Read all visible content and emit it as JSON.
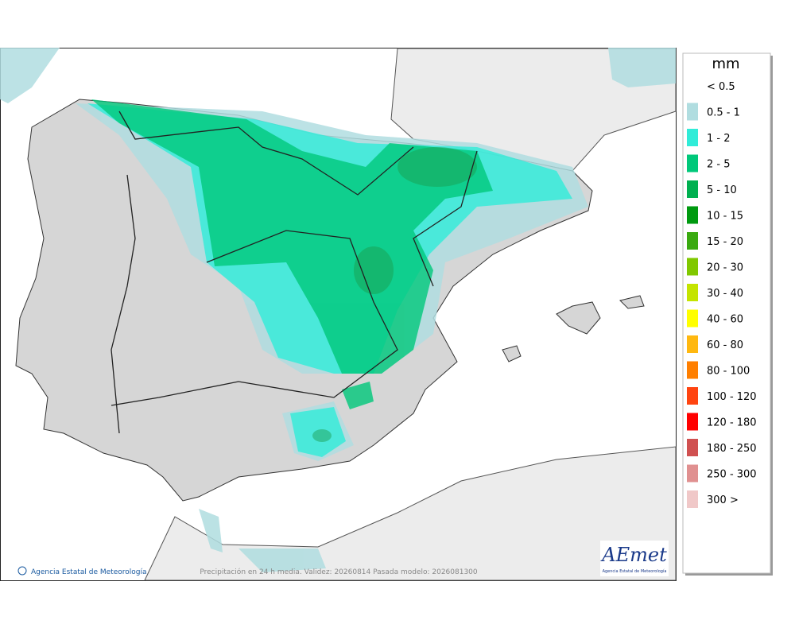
{
  "legend": {
    "title": "mm",
    "items": [
      {
        "label": "< 0.5"
      },
      {
        "label": "0.5 - 1",
        "color": "#b0dde0"
      },
      {
        "label": "1 - 2",
        "color": "#30ecd8"
      },
      {
        "label": "2 - 5",
        "color": "#00c87a"
      },
      {
        "label": "5 - 10",
        "color": "#00b050"
      },
      {
        "label": "10 - 15",
        "color": "#009a10"
      },
      {
        "label": "15 - 20",
        "color": "#3aaa10"
      },
      {
        "label": "20 - 30",
        "color": "#80c800"
      },
      {
        "label": "30 - 40",
        "color": "#c4e400"
      },
      {
        "label": "40 - 60",
        "color": "#ffff00"
      },
      {
        "label": "60 - 80",
        "color": "#ffb810"
      },
      {
        "label": "80 - 100",
        "color": "#ff7f00"
      },
      {
        "label": "100 - 120",
        "color": "#ff4410"
      },
      {
        "label": "120 - 180",
        "color": "#ff0000"
      },
      {
        "label": "180 - 250",
        "color": "#d05050"
      },
      {
        "label": "250 - 300",
        "color": "#e09090"
      },
      {
        "label": "300 >",
        "color": "#f0c8c8"
      }
    ]
  },
  "footer": {
    "credit": "Agencia Estatal de Meteorología",
    "caption": "Precipitación en 24 h media. Validez: 20260814 Pasada modelo: 2026081300"
  },
  "logo": {
    "name": "AEmet",
    "subtitle": "Agencia Estatal de Meteorología"
  }
}
